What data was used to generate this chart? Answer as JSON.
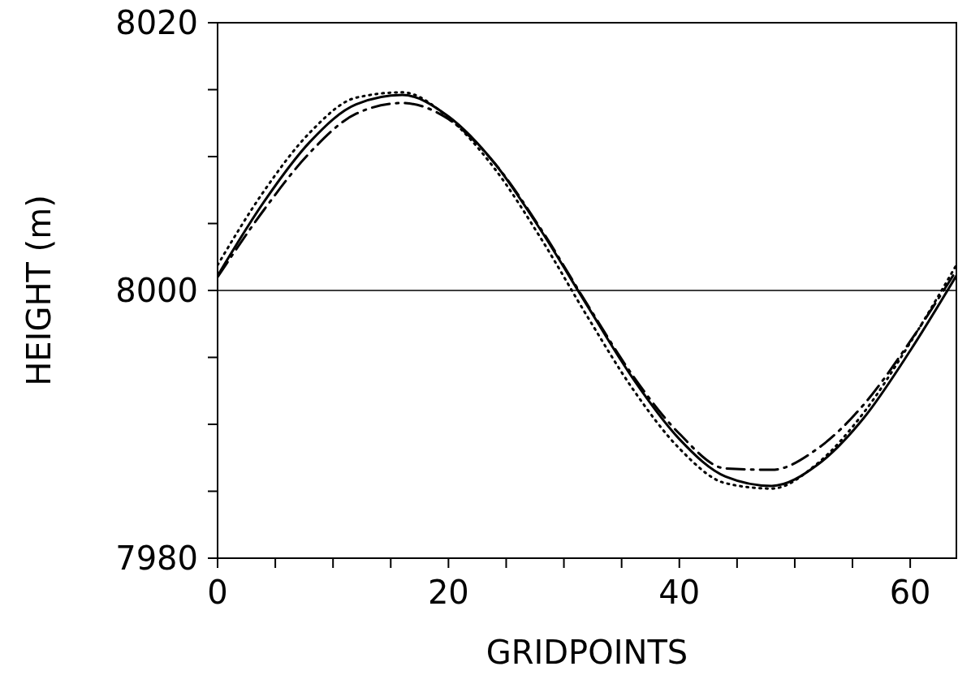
{
  "chart_data": {
    "type": "line",
    "xlabel": "GRIDPOINTS",
    "ylabel": "HEIGHT (m)",
    "x": [
      0,
      4,
      8,
      12,
      16,
      20,
      24,
      28,
      32,
      36,
      40,
      44,
      48,
      52,
      56,
      60,
      64
    ],
    "xlim": [
      0,
      64
    ],
    "xticks": [
      0,
      {
        "value": 5,
        "label": null
      },
      {
        "value": 10,
        "label": null
      },
      {
        "value": 15,
        "label": null
      },
      20,
      {
        "value": 25,
        "label": null
      },
      {
        "value": 30,
        "label": null
      },
      {
        "value": 35,
        "label": null
      },
      40,
      {
        "value": 45,
        "label": null
      },
      {
        "value": 50,
        "label": null
      },
      {
        "value": 55,
        "label": null
      },
      60
    ],
    "ylim": [
      7980,
      8020
    ],
    "yticks": [
      7980,
      {
        "value": 7985,
        "label": null
      },
      {
        "value": 7990,
        "label": null
      },
      {
        "value": 7995,
        "label": null
      },
      8000,
      {
        "value": 8005,
        "label": null
      },
      {
        "value": 8010,
        "label": null
      },
      {
        "value": 8015,
        "label": null
      },
      8020
    ],
    "grid": false,
    "legend": false,
    "marker": "none",
    "ref_lines": [
      {
        "axis": "y",
        "value": 8000,
        "color": "#000000"
      }
    ],
    "series": [
      {
        "color": "#000000",
        "line_style": "solid",
        "values": [
          8001.1,
          8006.6,
          8011.1,
          8013.9,
          8014.6,
          8013.0,
          8009.5,
          8004.5,
          7998.9,
          7993.4,
          7988.9,
          7986.1,
          7985.4,
          7987.0,
          7990.5,
          7995.5,
          8001.1
        ]
      },
      {
        "color": "#000000",
        "line_style": "dotted",
        "values": [
          8001.9,
          8007.4,
          8011.8,
          8014.4,
          8014.8,
          8012.9,
          8009.1,
          8003.9,
          7998.1,
          7992.6,
          7988.2,
          7985.6,
          7985.2,
          7987.1,
          7990.9,
          7996.1,
          8001.9
        ]
      },
      {
        "color": "#000000",
        "line_style": "dashdot",
        "values": [
          8001.0,
          8006.0,
          8010.3,
          8013.2,
          8014.0,
          8012.8,
          8009.5,
          8004.6,
          7999.0,
          7993.6,
          7989.3,
          7986.7,
          7986.6,
          7988.2,
          7991.5,
          7996.2,
          8001.5
        ]
      }
    ]
  }
}
